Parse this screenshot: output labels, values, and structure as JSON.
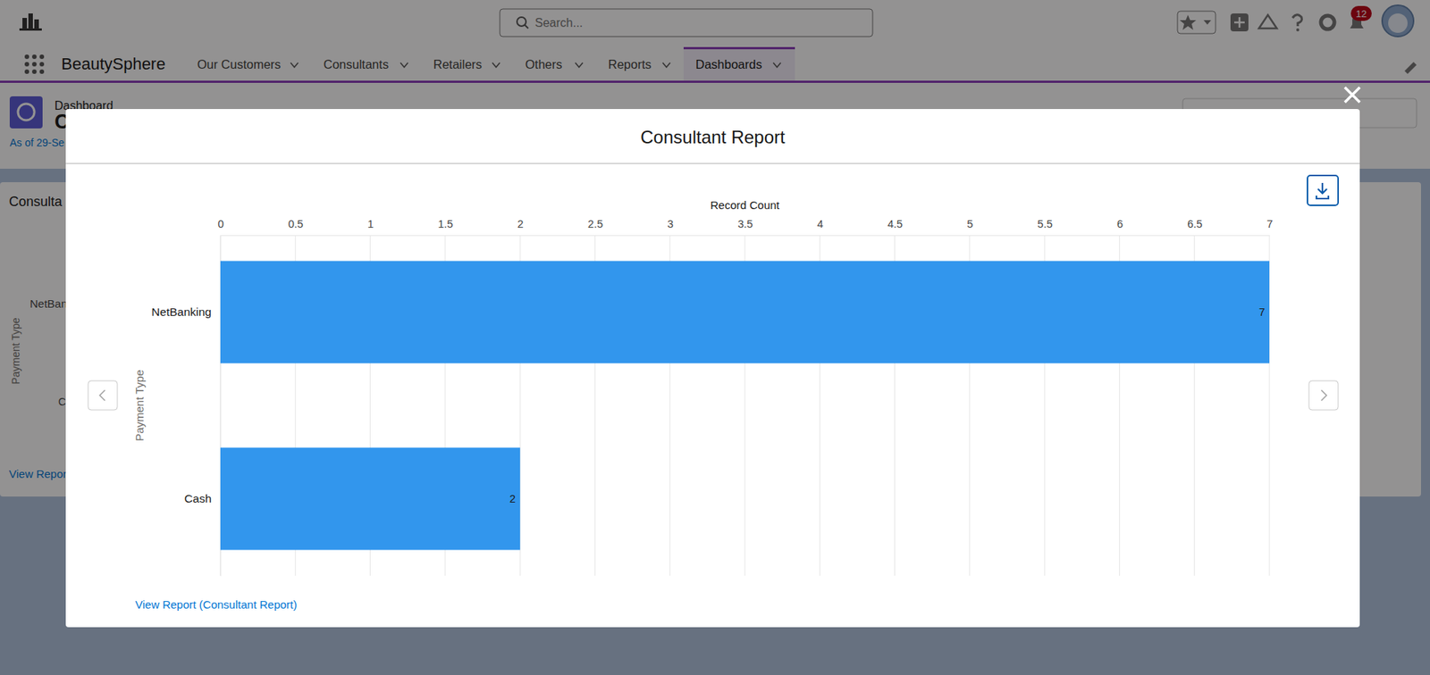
{
  "page": {
    "app_name": "BeautySphere",
    "search_placeholder": "Search...",
    "notifications": 12,
    "nav_items": [
      "Our Customers",
      "Consultants",
      "Retailers",
      "Others",
      "Reports",
      "Dashboards"
    ],
    "header": {
      "object_label": "Dashboard",
      "title": "C",
      "as_of": "As of 29-Se"
    },
    "background_card": {
      "title": "Consulta",
      "category_fragments": [
        "NetBan",
        "C"
      ],
      "axis_label": "Payment Type",
      "link": "View Repor"
    },
    "modal": {
      "link": "View Report (Consultant Report)"
    }
  },
  "chart_data": {
    "type": "bar",
    "title": "Consultant Report",
    "orientation": "horizontal",
    "categories": [
      "NetBanking",
      "Cash"
    ],
    "values": [
      7,
      2
    ],
    "color": "#3296ed",
    "x_label": "Record Count",
    "y_label": "Payment Type",
    "xlim": [
      0,
      7
    ],
    "xticks": [
      0,
      0.5,
      1,
      1.5,
      2,
      2.5,
      3,
      3.5,
      4,
      4.5,
      5,
      5.5,
      6,
      6.5,
      7
    ],
    "grid": true,
    "data_labels": true
  }
}
